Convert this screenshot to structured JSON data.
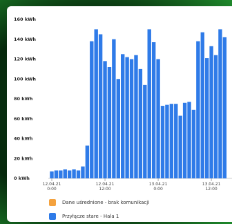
{
  "chart_data": {
    "type": "bar",
    "categories": [
      null,
      null,
      null,
      null,
      null,
      null,
      null,
      null,
      null,
      null,
      null,
      null,
      null,
      null,
      null,
      null,
      null,
      null,
      null,
      null,
      null,
      null,
      null,
      null,
      null,
      null,
      null,
      null,
      null,
      null,
      null,
      null,
      null,
      null,
      null,
      null,
      null,
      null,
      null,
      null
    ],
    "series": [
      {
        "name": "Dane uśrednione - brak komunikacji",
        "color": "#f4a23e",
        "values": [
          null,
          null,
          null,
          null,
          null,
          null,
          null,
          null,
          null,
          null,
          null,
          null,
          null,
          null,
          null,
          null,
          null,
          null,
          null,
          null,
          null,
          null,
          null,
          null,
          null,
          null,
          null,
          null,
          null,
          null,
          null,
          null,
          null,
          null,
          null,
          null,
          null,
          null,
          null,
          null
        ]
      },
      {
        "name": "Przyłącze stare - Hala 1",
        "color": "#2f7be8",
        "values": [
          7,
          8,
          8,
          9,
          8,
          9,
          8,
          12,
          33,
          138,
          150,
          145,
          118,
          112,
          140,
          100,
          125,
          122,
          120,
          124,
          110,
          94,
          150,
          137,
          120,
          73,
          74,
          75,
          75,
          63,
          76,
          77,
          69,
          138,
          147,
          121,
          133,
          124,
          150,
          142
        ]
      }
    ],
    "ylim": [
      0,
      160
    ],
    "yticks": [
      {
        "value": 0,
        "label": "0 kWh"
      },
      {
        "value": 20,
        "label": "20 kWh"
      },
      {
        "value": 40,
        "label": "40 kWh"
      },
      {
        "value": 60,
        "label": "60 kWh"
      },
      {
        "value": 80,
        "label": "80 kWh"
      },
      {
        "value": 100,
        "label": "100 kWh"
      },
      {
        "value": 120,
        "label": "120 kWh"
      },
      {
        "value": 140,
        "label": "140 kWh"
      },
      {
        "value": 160,
        "label": "160 kWh"
      }
    ],
    "xticks": [
      {
        "value": 0,
        "label": "12.04.21\n0:00"
      },
      {
        "value": 12,
        "label": "12.04.21\n12:00"
      },
      {
        "value": 24,
        "label": "13.04.21\n0:00"
      },
      {
        "value": 36,
        "label": "13.04.21\n12:00"
      }
    ],
    "grid": false
  }
}
